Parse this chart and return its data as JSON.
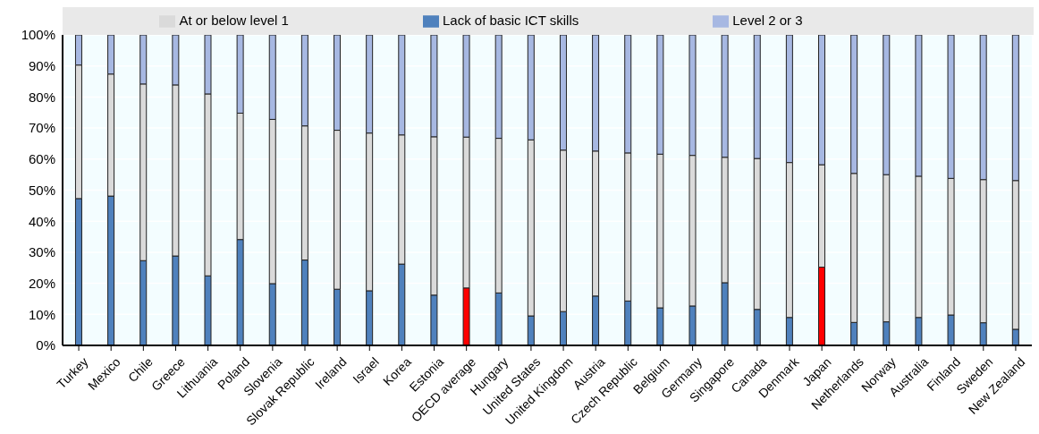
{
  "chart_data": {
    "type": "bar",
    "stacked": true,
    "legend": "top",
    "grid": "y",
    "categories": [
      "Turkey",
      "Mexico",
      "Chile",
      "Greece",
      "Lithuania",
      "Poland",
      "Slovenia",
      "Slovak Republic",
      "Ireland",
      "Israel",
      "Korea",
      "Estonia",
      "OECD average",
      "Hungary",
      "United States",
      "United Kingdom",
      "Austria",
      "Czech Republic",
      "Belgium",
      "Germany",
      "Singapore",
      "Canada",
      "Denmark",
      "Japan",
      "Netherlands",
      "Norway",
      "Australia",
      "Finland",
      "Sweden",
      "New Zealand"
    ],
    "series": [
      {
        "name": "Lack of basic ICT skills",
        "color": "#4f81bd",
        "colors": [
          "#4f81bd",
          "#4f81bd",
          "#4f81bd",
          "#4f81bd",
          "#4f81bd",
          "#4f81bd",
          "#4f81bd",
          "#4f81bd",
          "#4f81bd",
          "#4f81bd",
          "#4f81bd",
          "#4f81bd",
          "#ff0000",
          "#4f81bd",
          "#4f81bd",
          "#4f81bd",
          "#4f81bd",
          "#4f81bd",
          "#4f81bd",
          "#4f81bd",
          "#4f81bd",
          "#4f81bd",
          "#4f81bd",
          "#ff0000",
          "#4f81bd",
          "#4f81bd",
          "#4f81bd",
          "#4f81bd",
          "#4f81bd",
          "#4f81bd"
        ],
        "values": [
          47.3,
          48.1,
          27.3,
          28.8,
          22.4,
          34.1,
          19.9,
          27.5,
          18.1,
          17.6,
          26.2,
          16.2,
          18.5,
          16.9,
          9.5,
          10.9,
          15.9,
          14.3,
          12.1,
          12.7,
          20.2,
          11.6,
          9.0,
          25.2,
          7.4,
          7.6,
          9.0,
          9.8,
          7.3,
          5.2
        ]
      },
      {
        "name": "At or below level 1",
        "color": "#dadada",
        "values": [
          43.0,
          39.3,
          56.9,
          55.1,
          58.6,
          40.7,
          52.9,
          43.2,
          51.2,
          50.8,
          41.6,
          51.0,
          48.6,
          49.8,
          56.7,
          52.0,
          46.7,
          47.7,
          49.5,
          48.5,
          40.4,
          48.6,
          49.9,
          33.0,
          48.0,
          47.4,
          45.5,
          44.0,
          46.1,
          47.9
        ]
      },
      {
        "name": "Level 2 or 3",
        "color": "#a7b8e2",
        "values": [
          9.7,
          12.6,
          15.8,
          16.1,
          19.0,
          25.2,
          27.2,
          29.3,
          30.7,
          31.6,
          32.2,
          32.8,
          32.9,
          33.3,
          33.8,
          37.1,
          37.4,
          38.0,
          38.4,
          38.8,
          39.4,
          39.8,
          41.1,
          41.8,
          44.6,
          45.0,
          45.5,
          46.2,
          46.6,
          46.9
        ]
      }
    ],
    "ylim": [
      0,
      100
    ],
    "yticks": [
      {
        "value": 0,
        "label": "0%"
      },
      {
        "value": 10,
        "label": "10%"
      },
      {
        "value": 20,
        "label": "20%"
      },
      {
        "value": 30,
        "label": "30%"
      },
      {
        "value": 40,
        "label": "40%"
      },
      {
        "value": 50,
        "label": "50%"
      },
      {
        "value": 60,
        "label": "60%"
      },
      {
        "value": 70,
        "label": "70%"
      },
      {
        "value": 80,
        "label": "80%"
      },
      {
        "value": 90,
        "label": "90%"
      },
      {
        "value": 100,
        "label": "100%"
      }
    ]
  }
}
